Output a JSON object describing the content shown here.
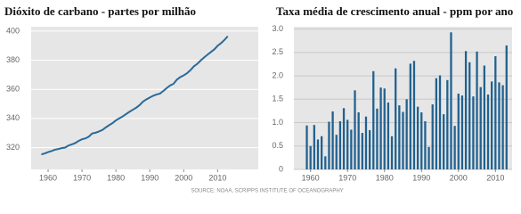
{
  "chart_data": [
    {
      "type": "line",
      "title": "Dióxito de carbano - partes por milhão",
      "x": [
        1958,
        1959,
        1960,
        1961,
        1962,
        1963,
        1964,
        1965,
        1966,
        1967,
        1968,
        1969,
        1970,
        1971,
        1972,
        1973,
        1974,
        1975,
        1976,
        1977,
        1978,
        1979,
        1980,
        1981,
        1982,
        1983,
        1984,
        1985,
        1986,
        1987,
        1988,
        1989,
        1990,
        1991,
        1992,
        1993,
        1994,
        1995,
        1996,
        1997,
        1998,
        1999,
        2000,
        2001,
        2002,
        2003,
        2004,
        2005,
        2006,
        2007,
        2008,
        2009,
        2010,
        2011,
        2012,
        2013
      ],
      "series": [
        {
          "color": "#2a6a98",
          "values": [
            315.3,
            316.0,
            316.9,
            317.6,
            318.5,
            319.0,
            319.6,
            320.0,
            321.4,
            322.2,
            323.1,
            324.6,
            325.7,
            326.3,
            327.5,
            329.7,
            330.2,
            331.1,
            332.1,
            333.8,
            335.4,
            336.8,
            338.7,
            340.1,
            341.4,
            343.0,
            344.6,
            346.0,
            347.4,
            349.2,
            351.6,
            353.1,
            354.4,
            355.6,
            356.5,
            357.1,
            358.9,
            360.9,
            362.7,
            363.8,
            366.7,
            368.4,
            369.6,
            371.1,
            373.2,
            375.8,
            377.5,
            379.8,
            381.9,
            383.8,
            385.6,
            387.4,
            389.9,
            391.7,
            393.9,
            396.5
          ]
        }
      ],
      "xlim": [
        1955,
        2022
      ],
      "xticks": [
        1960,
        1970,
        1980,
        1990,
        2000,
        2010
      ],
      "ylim": [
        305,
        403
      ],
      "yticks": [
        320,
        340,
        360,
        380,
        400
      ],
      "grid": true
    },
    {
      "type": "bar",
      "title": "Taxa média de crescimento anual - ppm por ano",
      "x": [
        1959,
        1960,
        1961,
        1962,
        1963,
        1964,
        1965,
        1966,
        1967,
        1968,
        1969,
        1970,
        1971,
        1972,
        1973,
        1974,
        1975,
        1976,
        1977,
        1978,
        1979,
        1980,
        1981,
        1982,
        1983,
        1984,
        1985,
        1986,
        1987,
        1988,
        1989,
        1990,
        1991,
        1992,
        1993,
        1994,
        1995,
        1996,
        1997,
        1998,
        1999,
        2000,
        2001,
        2002,
        2003,
        2004,
        2005,
        2006,
        2007,
        2008,
        2009,
        2010,
        2011,
        2012,
        2013
      ],
      "series": [
        {
          "color": "#21618f",
          "values": [
            0.94,
            0.5,
            0.95,
            0.64,
            0.71,
            0.28,
            1.02,
            1.24,
            0.74,
            1.03,
            1.31,
            1.06,
            0.85,
            1.69,
            1.22,
            0.78,
            1.13,
            0.84,
            2.1,
            1.3,
            1.75,
            1.73,
            1.43,
            0.71,
            2.16,
            1.37,
            1.23,
            1.5,
            2.26,
            2.32,
            1.34,
            1.22,
            1.03,
            0.48,
            1.39,
            1.95,
            2.01,
            1.18,
            1.91,
            2.93,
            0.93,
            1.62,
            1.58,
            2.53,
            2.29,
            1.56,
            2.52,
            1.76,
            2.22,
            1.6,
            1.88,
            2.42,
            1.86,
            1.8,
            2.65
          ]
        }
      ],
      "xlim": [
        1955.5,
        2014.5
      ],
      "xticks": [
        1960,
        1970,
        1980,
        1990,
        2000,
        2010
      ],
      "ylim": [
        0,
        3.05
      ],
      "yticks": [
        0,
        {
          "value": 0.5,
          "label": "0.5"
        },
        {
          "value": 1,
          "label": "1.0"
        },
        {
          "value": 1.5,
          "label": "1.5"
        },
        {
          "value": 2,
          "label": "2.0"
        },
        {
          "value": 2.5,
          "label": "2.5"
        },
        {
          "value": 3,
          "label": "3.0"
        }
      ],
      "grid": true
    }
  ],
  "source": "SOURCE: NOAA, SCRIPPS INSTITUTE OF OCEANOGRAPHY"
}
